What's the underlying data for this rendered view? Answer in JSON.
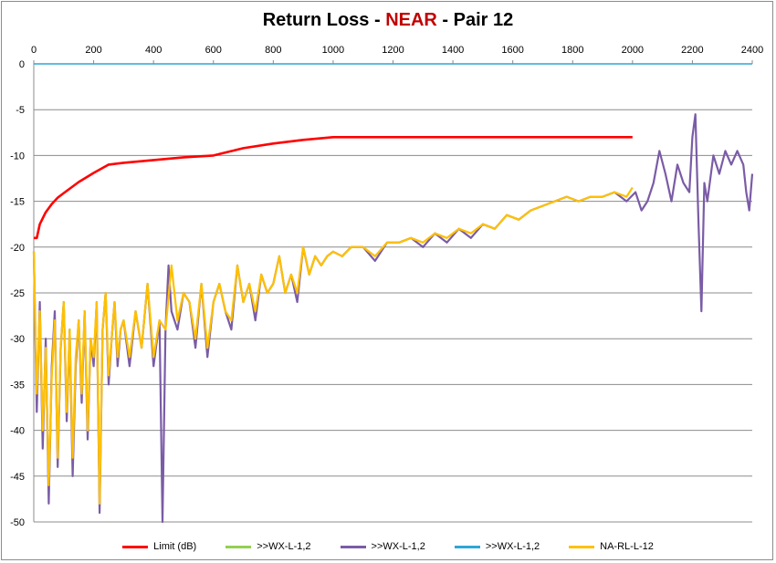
{
  "title": {
    "prefix": "Return Loss - ",
    "accent": "NEAR",
    "suffix": " - Pair 12",
    "accent_color": "#c00000"
  },
  "chart_data": {
    "type": "line",
    "title": "Return Loss - NEAR - Pair 12",
    "xlabel": "",
    "ylabel": "",
    "xlim": [
      0,
      2400
    ],
    "ylim": [
      -50,
      0
    ],
    "x_ticks": [
      0,
      200,
      400,
      600,
      800,
      1000,
      1200,
      1400,
      1600,
      1800,
      2000,
      2200,
      2400
    ],
    "y_ticks": [
      0,
      -5,
      -10,
      -15,
      -20,
      -25,
      -30,
      -35,
      -40,
      -45,
      -50
    ],
    "x_axis_position": "top",
    "grid": "horizontal",
    "legend_position": "bottom",
    "series": [
      {
        "name": "Limit (dB)",
        "color": "#ff0000",
        "x": [
          0,
          10,
          20,
          40,
          60,
          80,
          100,
          150,
          200,
          250,
          300,
          400,
          500,
          600,
          650,
          700,
          800,
          900,
          1000,
          1200,
          1500,
          1800,
          2000
        ],
        "y": [
          -19,
          -19,
          -17.5,
          -16.2,
          -15.3,
          -14.6,
          -14.1,
          -12.9,
          -11.9,
          -11.0,
          -10.8,
          -10.5,
          -10.2,
          -10.0,
          -9.6,
          -9.2,
          -8.7,
          -8.3,
          -8.0,
          -8.0,
          -8.0,
          -8.0,
          -8.0
        ]
      },
      {
        "name": ">>WX-L-1,2",
        "color": "#92d050",
        "x": [],
        "y": []
      },
      {
        "name": ">>WX-L-1,2",
        "color": "#7a5ca6",
        "x": [
          0,
          10,
          20,
          30,
          40,
          50,
          60,
          70,
          80,
          90,
          100,
          110,
          120,
          130,
          140,
          150,
          160,
          170,
          180,
          190,
          200,
          210,
          220,
          230,
          240,
          250,
          260,
          270,
          280,
          290,
          300,
          320,
          340,
          360,
          380,
          400,
          420,
          430,
          440,
          450,
          460,
          480,
          500,
          520,
          540,
          560,
          580,
          600,
          620,
          640,
          660,
          680,
          700,
          720,
          740,
          760,
          780,
          800,
          820,
          840,
          860,
          880,
          900,
          920,
          940,
          960,
          980,
          1000,
          1030,
          1060,
          1100,
          1140,
          1180,
          1220,
          1260,
          1300,
          1340,
          1380,
          1420,
          1460,
          1500,
          1540,
          1580,
          1620,
          1660,
          1700,
          1740,
          1780,
          1820,
          1860,
          1900,
          1940,
          1980,
          2010,
          2030,
          2050,
          2070,
          2090,
          2110,
          2130,
          2150,
          2170,
          2190,
          2200,
          2210,
          2220,
          2230,
          2240,
          2250,
          2270,
          2290,
          2310,
          2330,
          2350,
          2370,
          2380,
          2390,
          2400
        ],
        "y": [
          -20.5,
          -38,
          -26,
          -42,
          -30,
          -48,
          -33,
          -27,
          -44,
          -31,
          -26,
          -39,
          -29,
          -45,
          -33,
          -28,
          -37,
          -27,
          -41,
          -30,
          -33,
          -26,
          -49,
          -29,
          -25,
          -35,
          -30,
          -26,
          -33,
          -29,
          -28,
          -33,
          -27,
          -31,
          -24,
          -33,
          -28,
          -50,
          -29,
          -22,
          -27,
          -29,
          -25,
          -26,
          -31,
          -24,
          -32,
          -26,
          -24,
          -27,
          -29,
          -22,
          -26,
          -24,
          -28,
          -23,
          -25,
          -24,
          -21,
          -25,
          -23,
          -26,
          -20,
          -23,
          -21,
          -22,
          -21,
          -20.5,
          -21,
          -20,
          -20,
          -21.5,
          -19.5,
          -19.5,
          -19,
          -20,
          -18.5,
          -19.5,
          -18,
          -19,
          -17.5,
          -18,
          -16.5,
          -17,
          -16,
          -15.5,
          -15,
          -14.5,
          -15,
          -14.5,
          -14.5,
          -14,
          -15,
          -14,
          -16,
          -15,
          -13,
          -9.5,
          -12,
          -15,
          -11,
          -13,
          -14,
          -8,
          -5.5,
          -17,
          -27,
          -13,
          -15,
          -10,
          -12,
          -9.5,
          -11,
          -9.5,
          -11,
          -14,
          -16,
          -12
        ]
      },
      {
        "name": ">>WX-L-1,2",
        "color": "#2ea6d8",
        "x": [
          0,
          2400
        ],
        "y": [
          0,
          0
        ]
      },
      {
        "name": "NA-RL-L-12",
        "color": "#ffc000",
        "x": [
          0,
          10,
          20,
          30,
          40,
          50,
          60,
          70,
          80,
          90,
          100,
          110,
          120,
          130,
          140,
          150,
          160,
          170,
          180,
          190,
          200,
          210,
          220,
          230,
          240,
          250,
          260,
          270,
          280,
          290,
          300,
          320,
          340,
          360,
          380,
          400,
          420,
          440,
          460,
          480,
          500,
          520,
          540,
          560,
          580,
          600,
          620,
          640,
          660,
          680,
          700,
          720,
          740,
          760,
          780,
          800,
          820,
          840,
          860,
          880,
          900,
          920,
          940,
          960,
          980,
          1000,
          1030,
          1060,
          1100,
          1140,
          1180,
          1220,
          1260,
          1300,
          1340,
          1380,
          1420,
          1460,
          1500,
          1540,
          1580,
          1620,
          1660,
          1700,
          1740,
          1780,
          1820,
          1860,
          1900,
          1940,
          1980,
          2000
        ],
        "y": [
          -20.5,
          -36,
          -27,
          -40,
          -31,
          -46,
          -34,
          -28,
          -43,
          -31,
          -26,
          -38,
          -29,
          -43,
          -32,
          -28,
          -36,
          -27,
          -40,
          -30,
          -32,
          -26,
          -48,
          -29,
          -25,
          -34,
          -30,
          -26,
          -32,
          -29,
          -28,
          -32,
          -27,
          -31,
          -24,
          -32,
          -28,
          -29,
          -22,
          -28,
          -25,
          -26,
          -30,
          -24,
          -31,
          -26,
          -24,
          -27,
          -28,
          -22,
          -26,
          -24,
          -27,
          -23,
          -25,
          -24,
          -21,
          -25,
          -23,
          -25,
          -20,
          -23,
          -21,
          -22,
          -21,
          -20.5,
          -21,
          -20,
          -20,
          -21,
          -19.5,
          -19.5,
          -19,
          -19.5,
          -18.5,
          -19,
          -18,
          -18.5,
          -17.5,
          -18,
          -16.5,
          -17,
          -16,
          -15.5,
          -15,
          -14.5,
          -15,
          -14.5,
          -14.5,
          -14,
          -14.5,
          -13.5
        ]
      }
    ]
  }
}
